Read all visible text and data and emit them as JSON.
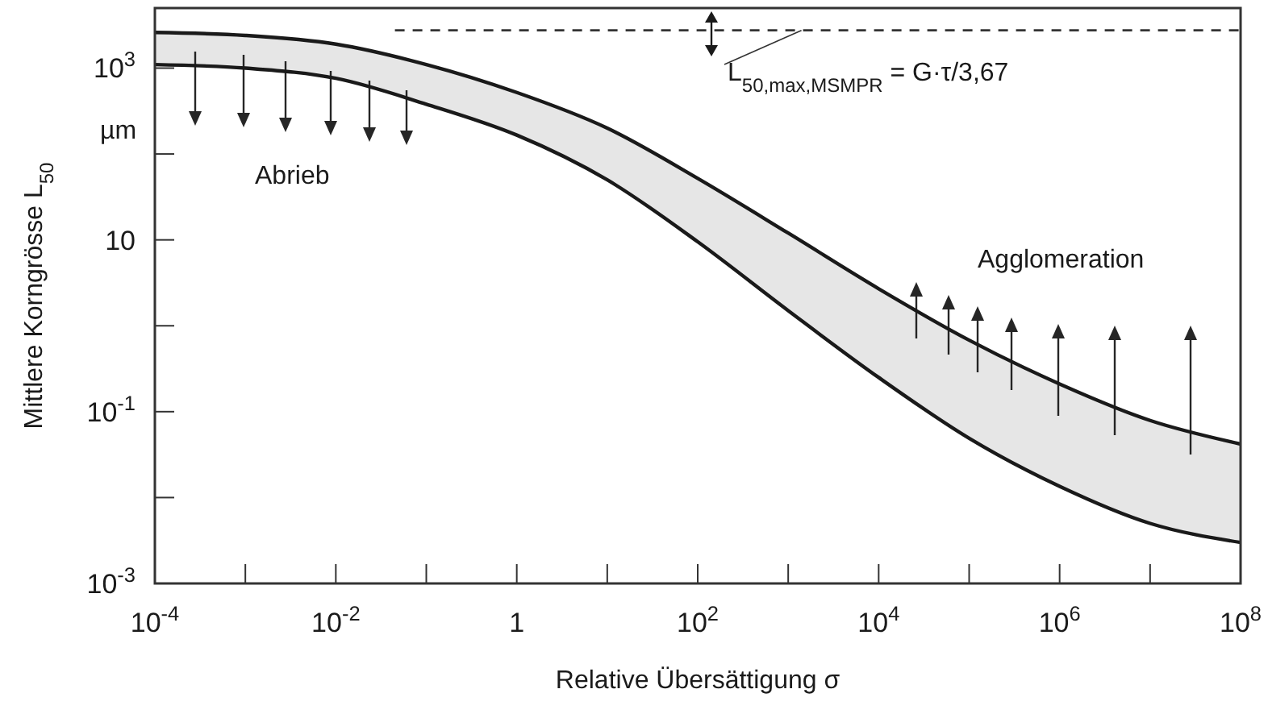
{
  "chart_data": {
    "type": "line",
    "xlabel": "Relative Übersättigung σ",
    "ylabel": "Mittlere Korngrösse L$_{50}$",
    "log": "xy",
    "grid": false,
    "marker": "none",
    "x": [
      0.0001,
      0.001,
      0.01,
      0.1,
      1,
      10,
      100,
      1000,
      10000,
      100000,
      1000000,
      10000000,
      100000000
    ],
    "xlim": [
      0.0001,
      100000000
    ],
    "ylim": [
      0.001,
      5000
    ],
    "xticks": [
      {
        "value": 0.0001,
        "label": "10$^{-4}$"
      },
      {
        "value": 0.001,
        "label": null
      },
      {
        "value": 0.01,
        "label": "10$^{-2}$"
      },
      {
        "value": 0.1,
        "label": null
      },
      1,
      {
        "value": 10,
        "label": null
      },
      {
        "value": 100,
        "label": "10$^{2}$"
      },
      {
        "value": 1000,
        "label": null
      },
      {
        "value": 10000,
        "label": "10$^{4}$"
      },
      {
        "value": 100000,
        "label": null
      },
      {
        "value": 1000000,
        "label": "10$^{6}$"
      },
      {
        "value": 10000000,
        "label": null
      },
      {
        "value": 100000000,
        "label": "10$^{8}$"
      }
    ],
    "yticks": [
      {
        "value": 0.001,
        "label": "10$^{-3}$"
      },
      {
        "value": 0.01,
        "label": null
      },
      {
        "value": 0.1,
        "label": "10$^{-1}$"
      },
      {
        "value": 1,
        "label": null
      },
      10,
      {
        "value": 100,
        "label": null
      },
      {
        "value": 1000,
        "label": "10$^{3}$"
      }
    ],
    "series": [
      {
        "color": "#1a1a1a",
        "values": [
          2600,
          2400,
          1900,
          1100,
          520,
          200,
          52,
          12,
          2.7,
          0.68,
          0.21,
          0.079,
          0.042
        ],
        "upper": [
          2600,
          2400,
          1900,
          1100,
          520,
          200,
          52,
          12,
          2.7,
          0.68,
          0.21,
          0.079,
          0.042
        ],
        "lower": [
          1100,
          1000,
          760,
          380,
          166,
          50,
          9.5,
          1.5,
          0.25,
          0.049,
          0.0135,
          0.005,
          0.003
        ]
      },
      {
        "color": "#1a1a1a",
        "values": [
          1100,
          1000,
          760,
          380,
          166,
          50,
          9.5,
          1.5,
          0.25,
          0.049,
          0.0135,
          0.005,
          0.003
        ]
      },
      {
        "color": "#333333",
        "line_style": "dashed",
        "x": [
          0.045,
          100000000
        ],
        "values": [
          2750,
          2750
        ]
      }
    ],
    "annotations": [
      "µm",
      "Abrieb",
      "Agglomeration",
      {
        "text": "L$_{50,max,MSMPR}$ = G·τ/3,67",
        "x": 1400,
        "y": 2750
      }
    ]
  }
}
